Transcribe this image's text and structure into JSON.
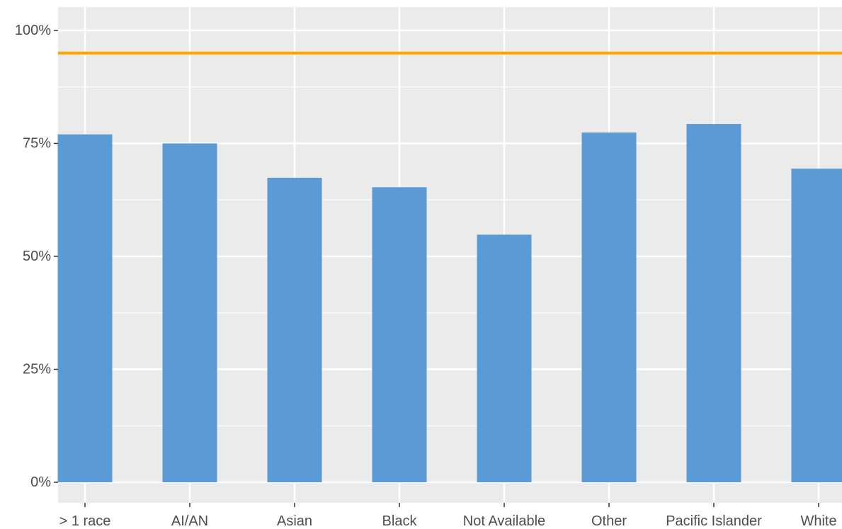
{
  "chart_data": {
    "type": "bar",
    "title": "",
    "xlabel": "",
    "ylabel": "",
    "categories": [
      "> 1 race",
      "AI/AN",
      "Asian",
      "Black",
      "Not Available",
      "Other",
      "Pacific Islander",
      "White"
    ],
    "values": [
      0.77,
      0.75,
      0.674,
      0.653,
      0.548,
      0.774,
      0.793,
      0.694
    ],
    "ylim": [
      0,
      1
    ],
    "y_ticks": [
      {
        "value": 0,
        "label": "0%"
      },
      {
        "value": 0.25,
        "label": "25%"
      },
      {
        "value": 0.5,
        "label": "50%"
      },
      {
        "value": 0.75,
        "label": "75%"
      },
      {
        "value": 1,
        "label": "100%"
      }
    ],
    "reference_line": {
      "value": 0.95
    },
    "grid": true,
    "legend": "none",
    "colors": {
      "bar": "#5b9bd5",
      "reference_line": "#ffa500",
      "panel_background": "#ebebeb",
      "grid": "#ffffff",
      "text": "#4d4d4d"
    }
  }
}
